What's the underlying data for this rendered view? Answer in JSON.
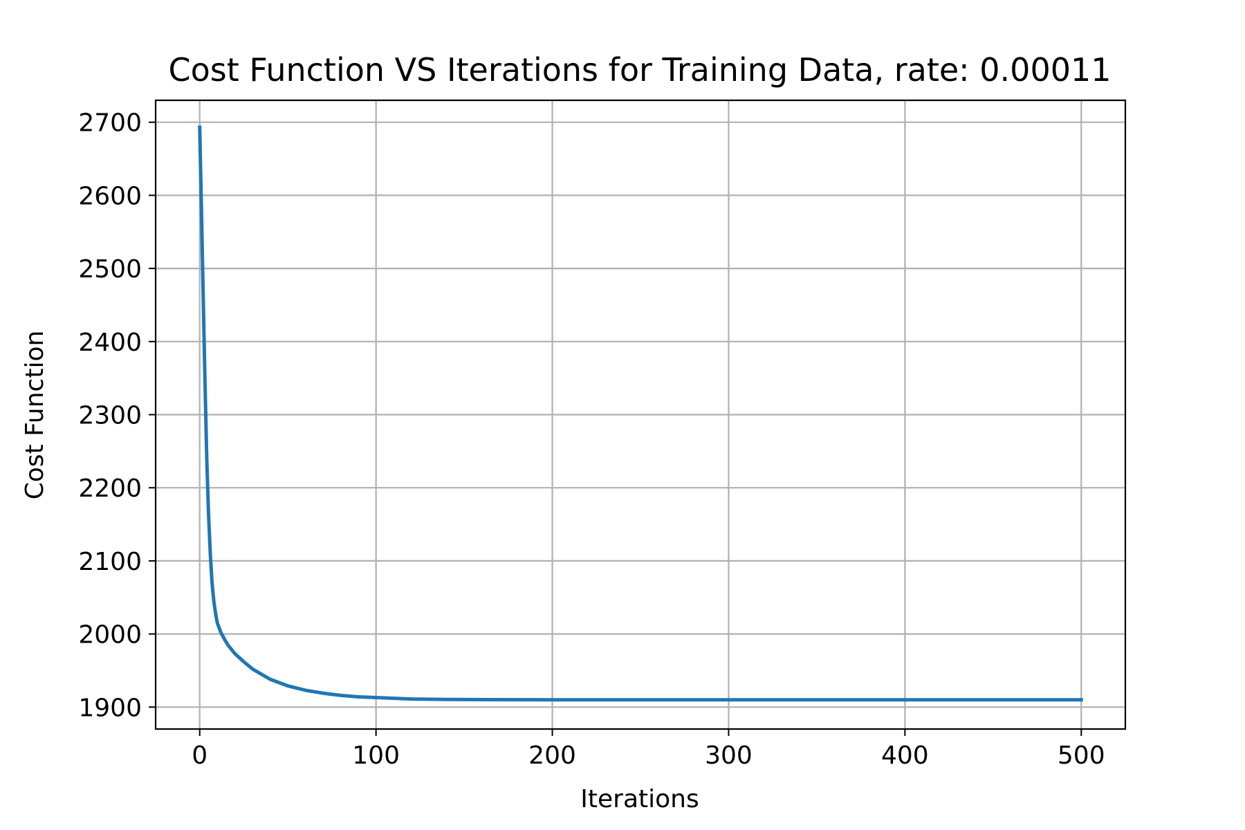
{
  "chart_data": {
    "type": "line",
    "title": "Cost Function VS Iterations for Training Data, rate: 0.00011",
    "xlabel": "Iterations",
    "ylabel": "Cost Function",
    "xlim": [
      -25,
      525
    ],
    "ylim": [
      1870,
      2730
    ],
    "xticks": [
      0,
      100,
      200,
      300,
      400,
      500
    ],
    "yticks": [
      1900,
      2000,
      2100,
      2200,
      2300,
      2400,
      2500,
      2600,
      2700
    ],
    "xtick_labels": [
      "0",
      "100",
      "200",
      "300",
      "400",
      "500"
    ],
    "ytick_labels": [
      "1900",
      "2000",
      "2100",
      "2200",
      "2300",
      "2400",
      "2500",
      "2600",
      "2700"
    ],
    "grid": true,
    "series": [
      {
        "color": "#1f77b4",
        "x": [
          0,
          1,
          2,
          3,
          4,
          5,
          6,
          7,
          8,
          9,
          10,
          12,
          14,
          16,
          20,
          25,
          30,
          40,
          50,
          60,
          70,
          80,
          90,
          100,
          120,
          140,
          160,
          180,
          200,
          250,
          300,
          350,
          400,
          450,
          500
        ],
        "y": [
          2693,
          2580,
          2460,
          2345,
          2240,
          2165,
          2110,
          2070,
          2045,
          2028,
          2015,
          2002,
          1993,
          1985,
          1973,
          1962,
          1952,
          1938,
          1929,
          1923,
          1919,
          1916,
          1914,
          1913,
          1911,
          1910.5,
          1910.2,
          1910.1,
          1910,
          1910,
          1910,
          1910,
          1910,
          1910,
          1910
        ]
      }
    ]
  }
}
